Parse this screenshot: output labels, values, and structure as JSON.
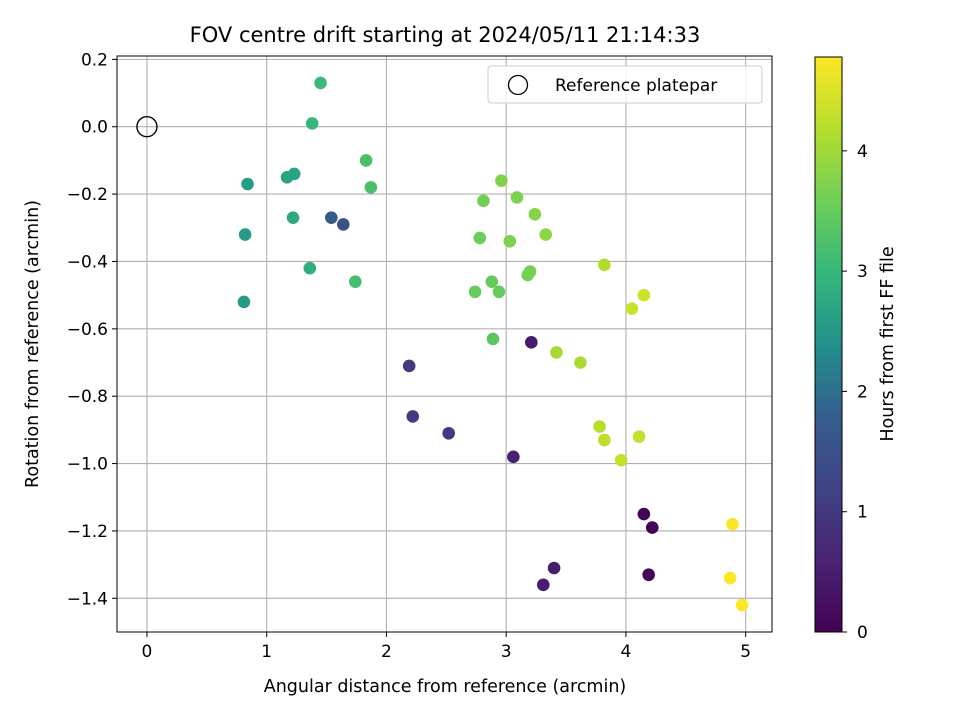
{
  "chart_data": {
    "type": "scatter",
    "title": "FOV centre drift starting at 2024/05/11 21:14:33",
    "xlabel": "Angular distance from reference (arcmin)",
    "ylabel": "Rotation from reference (arcmin)",
    "xlim": [
      -0.25,
      5.22
    ],
    "ylim": [
      -1.5,
      0.21
    ],
    "grid": true,
    "xticks": [
      0,
      1,
      2,
      3,
      4,
      5
    ],
    "yticks": [
      0.2,
      0.0,
      -0.2,
      -0.4,
      -0.6,
      -0.8,
      -1.0,
      -1.2,
      -1.4
    ],
    "xtick_labels": [
      "0",
      "1",
      "2",
      "3",
      "4",
      "5"
    ],
    "ytick_labels": [
      "0.2",
      "0.0",
      "−0.2",
      "−0.4",
      "−0.6",
      "−0.8",
      "−1.0",
      "−1.2",
      "−1.4"
    ],
    "reference": {
      "x": 0.0,
      "y": 0.0,
      "label": "Reference platepar"
    },
    "legend_location": "upper right",
    "colorbar": {
      "label": "Hours from first FF file",
      "colormap": "viridis",
      "range": [
        0,
        4.78
      ],
      "ticks": [
        0,
        1,
        2,
        3,
        4
      ],
      "tick_labels": [
        "0",
        "1",
        "2",
        "3",
        "4"
      ]
    },
    "points": [
      {
        "x": 4.15,
        "y": -1.15,
        "t": 0.05
      },
      {
        "x": 4.22,
        "y": -1.19,
        "t": 0.05
      },
      {
        "x": 4.19,
        "y": -1.33,
        "t": 0.05
      },
      {
        "x": 3.21,
        "y": -0.64,
        "t": 0.45
      },
      {
        "x": 3.4,
        "y": -1.31,
        "t": 0.5
      },
      {
        "x": 3.31,
        "y": -1.36,
        "t": 0.5
      },
      {
        "x": 3.06,
        "y": -0.98,
        "t": 0.6
      },
      {
        "x": 2.52,
        "y": -0.91,
        "t": 1.05
      },
      {
        "x": 2.19,
        "y": -0.71,
        "t": 1.05
      },
      {
        "x": 2.22,
        "y": -0.86,
        "t": 1.05
      },
      {
        "x": 1.64,
        "y": -0.29,
        "t": 1.5
      },
      {
        "x": 1.54,
        "y": -0.27,
        "t": 1.7
      },
      {
        "x": 0.81,
        "y": -0.52,
        "t": 2.55
      },
      {
        "x": 0.82,
        "y": -0.32,
        "t": 2.55
      },
      {
        "x": 0.84,
        "y": -0.17,
        "t": 2.55
      },
      {
        "x": 1.17,
        "y": -0.15,
        "t": 2.65
      },
      {
        "x": 1.23,
        "y": -0.14,
        "t": 2.65
      },
      {
        "x": 1.22,
        "y": -0.27,
        "t": 2.75
      },
      {
        "x": 1.36,
        "y": -0.42,
        "t": 2.85
      },
      {
        "x": 1.38,
        "y": 0.01,
        "t": 3.0
      },
      {
        "x": 1.45,
        "y": 0.13,
        "t": 3.05
      },
      {
        "x": 1.74,
        "y": -0.46,
        "t": 3.15
      },
      {
        "x": 1.83,
        "y": -0.1,
        "t": 3.2
      },
      {
        "x": 1.87,
        "y": -0.18,
        "t": 3.2
      },
      {
        "x": 2.89,
        "y": -0.63,
        "t": 3.4
      },
      {
        "x": 2.88,
        "y": -0.46,
        "t": 3.5
      },
      {
        "x": 2.74,
        "y": -0.49,
        "t": 3.5
      },
      {
        "x": 2.94,
        "y": -0.49,
        "t": 3.5
      },
      {
        "x": 2.78,
        "y": -0.33,
        "t": 3.55
      },
      {
        "x": 2.81,
        "y": -0.22,
        "t": 3.6
      },
      {
        "x": 3.18,
        "y": -0.44,
        "t": 3.6
      },
      {
        "x": 3.2,
        "y": -0.43,
        "t": 3.65
      },
      {
        "x": 3.03,
        "y": -0.34,
        "t": 3.7
      },
      {
        "x": 3.09,
        "y": -0.21,
        "t": 3.7
      },
      {
        "x": 2.96,
        "y": -0.16,
        "t": 3.75
      },
      {
        "x": 3.24,
        "y": -0.26,
        "t": 3.8
      },
      {
        "x": 3.33,
        "y": -0.32,
        "t": 3.85
      },
      {
        "x": 3.42,
        "y": -0.67,
        "t": 4.05
      },
      {
        "x": 3.62,
        "y": -0.7,
        "t": 4.1
      },
      {
        "x": 3.82,
        "y": -0.41,
        "t": 4.15
      },
      {
        "x": 3.78,
        "y": -0.89,
        "t": 4.2
      },
      {
        "x": 3.82,
        "y": -0.93,
        "t": 4.25
      },
      {
        "x": 3.96,
        "y": -0.99,
        "t": 4.3
      },
      {
        "x": 4.11,
        "y": -0.92,
        "t": 4.3
      },
      {
        "x": 4.05,
        "y": -0.54,
        "t": 4.35
      },
      {
        "x": 4.15,
        "y": -0.5,
        "t": 4.4
      },
      {
        "x": 4.89,
        "y": -1.18,
        "t": 4.75
      },
      {
        "x": 4.87,
        "y": -1.34,
        "t": 4.75
      },
      {
        "x": 4.97,
        "y": -1.42,
        "t": 4.78
      }
    ]
  }
}
